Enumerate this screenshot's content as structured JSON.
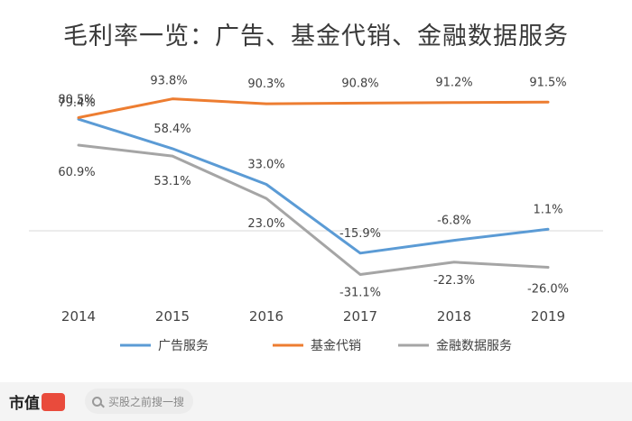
{
  "chart_data": {
    "type": "line",
    "title": "毛利率一览：广告、基金代销、金融数据服务",
    "categories": [
      "2014",
      "2015",
      "2016",
      "2017",
      "2018",
      "2019"
    ],
    "unit": "%",
    "ylim": [
      -40,
      100
    ],
    "series": [
      {
        "name": "广告服务",
        "color": "#5b9bd5",
        "values": [
          79.4,
          58.4,
          33.0,
          -15.9,
          -6.8,
          1.1
        ],
        "labels": [
          "79.4%",
          "58.4%",
          "33.0%",
          "-15.9%",
          "-6.8%",
          "1.1%"
        ]
      },
      {
        "name": "基金代销",
        "color": "#ed7d31",
        "values": [
          80.5,
          93.8,
          90.3,
          90.8,
          91.2,
          91.5
        ],
        "labels": [
          "80.5%",
          "93.8%",
          "90.3%",
          "90.8%",
          "91.2%",
          "91.5%"
        ]
      },
      {
        "name": "金融数据服务",
        "color": "#a5a5a5",
        "values": [
          60.9,
          53.1,
          23.0,
          -31.1,
          -22.3,
          -26.0
        ],
        "labels": [
          "60.9%",
          "53.1%",
          "23.0%",
          "-31.1%",
          "-22.3%",
          "-26.0%"
        ]
      }
    ],
    "legend_position": "bottom",
    "grid": false
  },
  "footer": {
    "logo_text": "市值",
    "search_placeholder": "买股之前搜一搜",
    "accent": "#e94b3c"
  }
}
